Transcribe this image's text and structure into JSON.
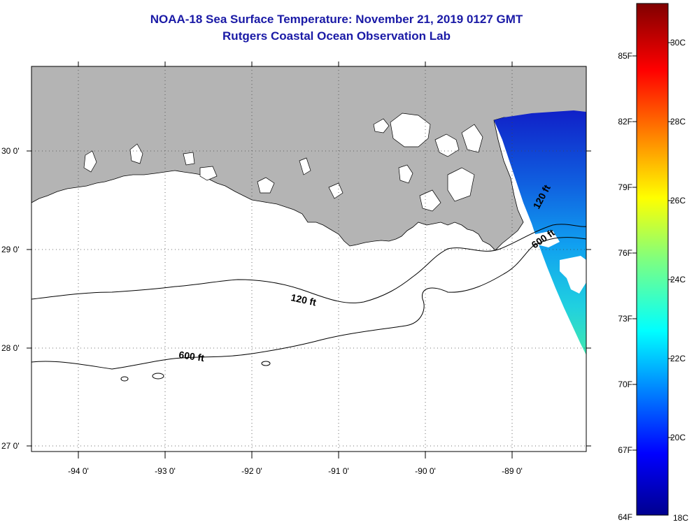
{
  "title": "NOAA-18 Sea Surface Temperature:  November 21, 2019 0127 GMT",
  "subtitle": "Rutgers Coastal Ocean Observation Lab",
  "map": {
    "lat_ticks": [
      "30 0'",
      "29 0'",
      "28 0'",
      "27 0'"
    ],
    "lon_ticks": [
      "-94 0'",
      "-93 0'",
      "-92 0'",
      "-91 0'",
      "-90 0'",
      "-89 0'"
    ],
    "contour_labels": [
      "120 ft",
      "600 ft",
      "120 ft",
      "600 ft"
    ],
    "land_color": "#b4b4b4",
    "water_color": "#ffffff"
  },
  "colorbar": {
    "f_labels": [
      "85F",
      "82F",
      "79F",
      "76F",
      "73F",
      "70F",
      "67F",
      "64F"
    ],
    "c_labels": [
      "30C",
      "28C",
      "26C",
      "24C",
      "22C",
      "20C",
      "18C"
    ],
    "range_c": [
      18,
      31
    ]
  }
}
